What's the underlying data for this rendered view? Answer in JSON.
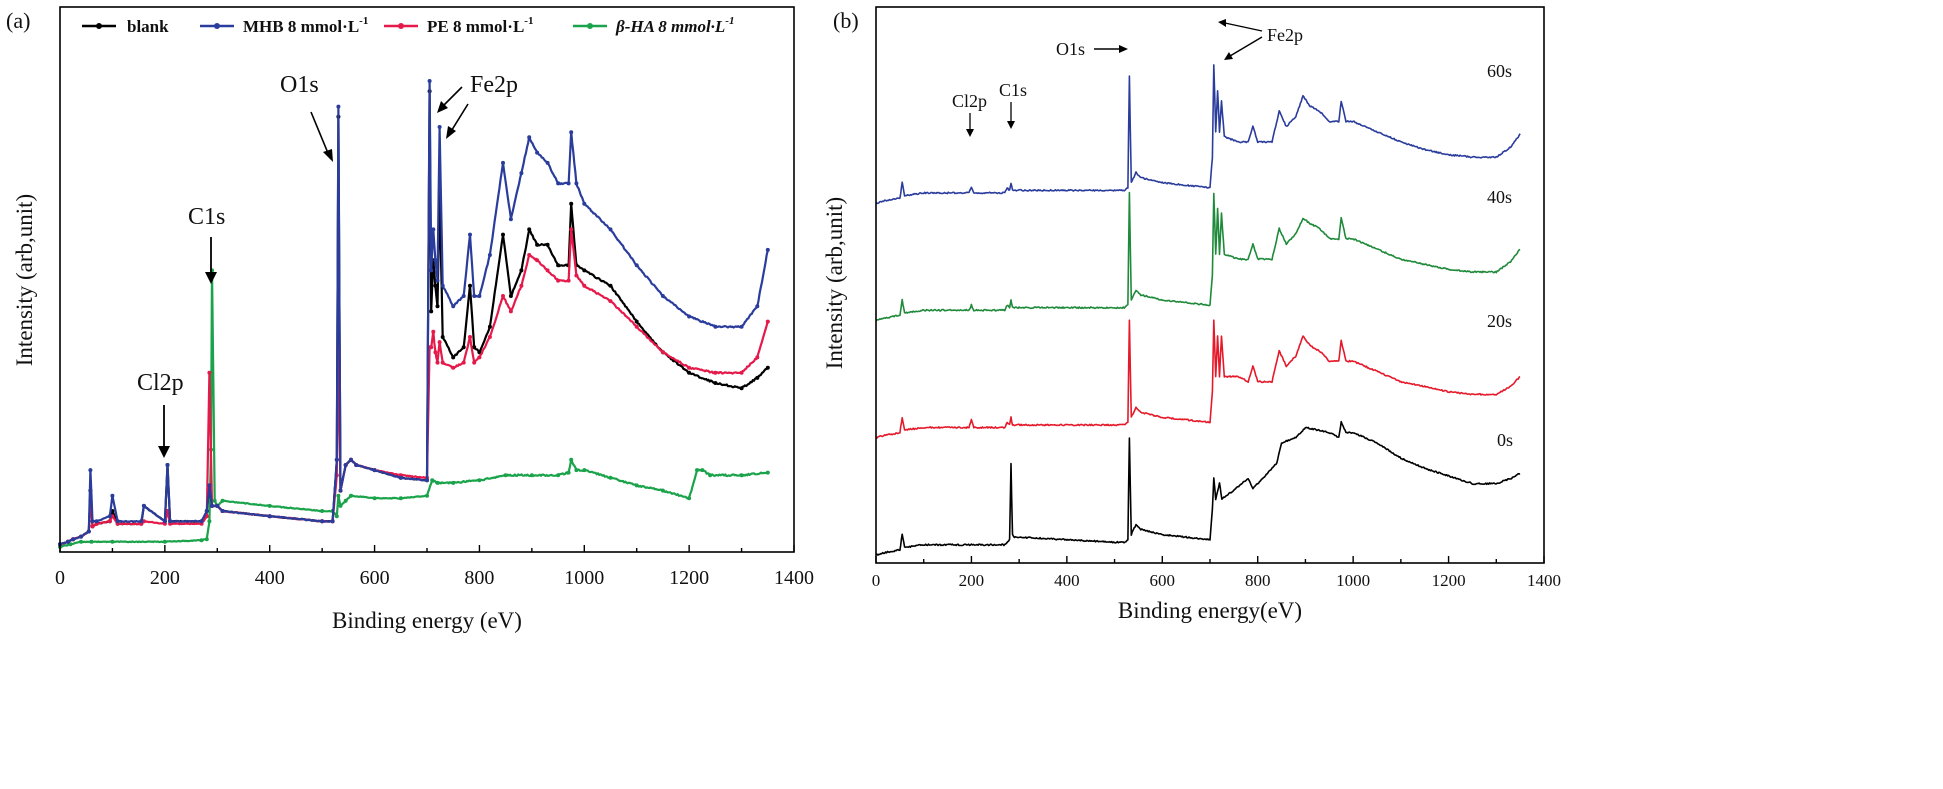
{
  "chart_data": [
    {
      "panel_label": "(a)",
      "type": "line",
      "xlabel": "Binding energy (eV)",
      "ylabel": "Intensity (arb,unit)",
      "xlim": [
        0,
        1400
      ],
      "ylim": [
        0,
        100
      ],
      "xticks": [
        "0",
        "200",
        "400",
        "600",
        "800",
        "1000",
        "1200",
        "1400"
      ],
      "legend": {
        "placement": "top",
        "entries": [
          {
            "label": "blank",
            "color": "#000000"
          },
          {
            "label": "MHB 8 mmol·L",
            "sup": "-1",
            "color": "#2b3d9c"
          },
          {
            "label": "PE 8 mmol·L",
            "sup": "-1",
            "color": "#e5194a"
          },
          {
            "label": "β-HA 8 mmol·L",
            "sup": "-1",
            "color": "#1aa34a"
          }
        ]
      },
      "annotations": [
        "O1s",
        "Fe2p",
        "C1s",
        "Cl2p"
      ],
      "series": [
        {
          "name": "blank",
          "color": "#000000",
          "x": [
            0,
            15,
            25,
            40,
            55,
            58,
            62,
            70,
            95,
            100,
            110,
            155,
            160,
            200,
            205,
            210,
            270,
            280,
            285,
            290,
            300,
            310,
            400,
            500,
            520,
            528,
            531,
            535,
            545,
            555,
            565,
            600,
            650,
            700,
            705,
            708,
            712,
            716,
            720,
            724,
            730,
            750,
            770,
            782,
            790,
            800,
            820,
            845,
            860,
            880,
            895,
            910,
            930,
            950,
            970,
            975,
            985,
            1000,
            1050,
            1100,
            1150,
            1200,
            1250,
            1300,
            1330,
            1350
          ],
          "y": [
            1.5,
            2,
            2.5,
            3,
            4,
            12,
            5,
            5.5,
            6,
            8,
            5.5,
            5.5,
            9,
            6,
            17,
            6,
            6,
            8,
            13,
            9,
            9,
            8,
            7,
            6,
            6,
            18,
            85,
            12,
            17,
            18,
            17,
            16,
            14.5,
            14,
            90,
            47,
            57,
            52,
            48,
            70,
            42,
            38,
            40,
            52,
            40,
            39,
            44,
            62,
            50,
            55,
            63,
            60,
            60,
            56,
            56,
            68,
            56,
            55,
            52,
            45,
            39,
            35,
            33,
            32,
            34,
            36
          ]
        },
        {
          "name": "MHB 8 mmol·L-1",
          "color": "#2b3d9c",
          "x": [
            0,
            15,
            25,
            40,
            55,
            58,
            62,
            70,
            95,
            100,
            110,
            155,
            160,
            200,
            205,
            210,
            270,
            280,
            285,
            290,
            300,
            310,
            400,
            500,
            520,
            528,
            531,
            535,
            545,
            555,
            565,
            600,
            650,
            700,
            705,
            708,
            712,
            716,
            720,
            724,
            730,
            750,
            770,
            782,
            790,
            800,
            820,
            845,
            860,
            880,
            895,
            910,
            930,
            950,
            970,
            975,
            985,
            1000,
            1050,
            1100,
            1150,
            1200,
            1250,
            1300,
            1330,
            1350
          ],
          "y": [
            1.5,
            2,
            2.5,
            3,
            4,
            16,
            6,
            6,
            7,
            11,
            6,
            6,
            9,
            6,
            17,
            6,
            6,
            8,
            13,
            9,
            9,
            8,
            7,
            6,
            6,
            18,
            87,
            12,
            17,
            18,
            17,
            16,
            14.5,
            14,
            92,
            55,
            63,
            57,
            53,
            83,
            52,
            48,
            50,
            62,
            50,
            50,
            58,
            76,
            65,
            74,
            81,
            78,
            76,
            72,
            72,
            82,
            72,
            68,
            63,
            56,
            50,
            46,
            44,
            44,
            48,
            59
          ]
        },
        {
          "name": "PE 8 mmol·L-1",
          "color": "#e5194a",
          "x": [
            0,
            15,
            25,
            40,
            55,
            58,
            62,
            70,
            95,
            100,
            110,
            155,
            160,
            200,
            205,
            210,
            270,
            280,
            285,
            290,
            300,
            310,
            400,
            500,
            520,
            528,
            531,
            535,
            545,
            555,
            565,
            600,
            650,
            700,
            705,
            708,
            712,
            716,
            720,
            724,
            730,
            750,
            770,
            782,
            790,
            800,
            820,
            845,
            860,
            880,
            895,
            910,
            930,
            950,
            970,
            975,
            985,
            1000,
            1050,
            1100,
            1150,
            1200,
            1250,
            1300,
            1330,
            1350
          ],
          "y": [
            1.5,
            2,
            2.5,
            3,
            4,
            10,
            5,
            5.5,
            6,
            7,
            5.5,
            5.5,
            6,
            5.5,
            8,
            5.5,
            5.5,
            7,
            35,
            9,
            9,
            8,
            7,
            6,
            6,
            15,
            40,
            12,
            17,
            18,
            17,
            16,
            15,
            14.5,
            40,
            40,
            43,
            39,
            37,
            41,
            37,
            36,
            37,
            42,
            37,
            38,
            42,
            50,
            47,
            52,
            58,
            57,
            55,
            53,
            53,
            63,
            54,
            52,
            49,
            44,
            39,
            36,
            35,
            35,
            38,
            45
          ]
        },
        {
          "name": "β-HA 8 mmol·L-1",
          "color": "#1aa34a",
          "x": [
            0,
            20,
            40,
            60,
            100,
            200,
            270,
            280,
            285,
            288,
            290,
            295,
            300,
            310,
            400,
            500,
            520,
            528,
            531,
            535,
            545,
            555,
            600,
            650,
            700,
            710,
            720,
            750,
            800,
            850,
            900,
            950,
            970,
            975,
            985,
            1000,
            1050,
            1100,
            1150,
            1200,
            1215,
            1225,
            1240,
            1300,
            1350
          ],
          "y": [
            1,
            1.5,
            2,
            2,
            2,
            2,
            2.3,
            2.5,
            6,
            20,
            55,
            10,
            9,
            10,
            9,
            8,
            8,
            7,
            11,
            9,
            10,
            11,
            10.5,
            10.5,
            11,
            14,
            13.5,
            13.5,
            14,
            15,
            15,
            15,
            15.5,
            18,
            16,
            16,
            14.5,
            13,
            12,
            10.5,
            16,
            16,
            15,
            15,
            15.5
          ]
        }
      ]
    },
    {
      "panel_label": "(b)",
      "type": "line",
      "xlabel": "Binding energy(eV)",
      "ylabel": "Intensity (arb,unit)",
      "xlim": [
        0,
        1400
      ],
      "ylim": [
        0,
        100
      ],
      "xticks": [
        "0",
        "200",
        "400",
        "600",
        "800",
        "1000",
        "1200",
        "1400"
      ],
      "annotations": [
        "O1s",
        "Fe2p",
        "Cl2p",
        "C1s"
      ],
      "series_labels": [
        "60s",
        "40s",
        "20s",
        "0s"
      ],
      "series": [
        {
          "name": "0s",
          "color": "#000000",
          "offset": 0,
          "label": "0s",
          "x": [
            0,
            20,
            50,
            55,
            60,
            100,
            200,
            270,
            280,
            283,
            286,
            290,
            300,
            400,
            500,
            520,
            528,
            531,
            535,
            545,
            555,
            600,
            650,
            700,
            705,
            708,
            712,
            720,
            725,
            740,
            780,
            790,
            800,
            840,
            850,
            880,
            900,
            950,
            970,
            975,
            985,
            1000,
            1050,
            1100,
            1150,
            1200,
            1250,
            1300,
            1330,
            1350
          ],
          "y": [
            0,
            0.5,
            1,
            4,
            1.5,
            2,
            2,
            2,
            3,
            18,
            4,
            3.5,
            3.5,
            3,
            2.5,
            2.5,
            3,
            23,
            4,
            6,
            5,
            4,
            3.5,
            3,
            9,
            15,
            11,
            14,
            11,
            12,
            15,
            13,
            14,
            18,
            22,
            23,
            25,
            24,
            23,
            26,
            24,
            24,
            22,
            19,
            17,
            15.5,
            14,
            14,
            15,
            16
          ]
        },
        {
          "name": "20s",
          "color": "#e5192a",
          "offset": 23,
          "label": "20s",
          "x": [
            0,
            20,
            50,
            55,
            60,
            100,
            195,
            200,
            205,
            270,
            275,
            280,
            283,
            286,
            290,
            300,
            400,
            500,
            520,
            528,
            531,
            535,
            545,
            555,
            600,
            650,
            700,
            705,
            708,
            712,
            716,
            720,
            724,
            730,
            760,
            780,
            790,
            800,
            830,
            845,
            860,
            880,
            895,
            910,
            930,
            950,
            970,
            975,
            985,
            1000,
            1050,
            1100,
            1150,
            1200,
            1250,
            1300,
            1330,
            1350
          ],
          "y": [
            0,
            0.5,
            1,
            4,
            1.5,
            2,
            2,
            3.5,
            2,
            2,
            3,
            2.5,
            4,
            2.5,
            2.5,
            2.5,
            2.5,
            2.5,
            2.5,
            3,
            23,
            4,
            6,
            5,
            4,
            3.5,
            3,
            9,
            23,
            12,
            20,
            12,
            20,
            12,
            12,
            11,
            14,
            11,
            11,
            17,
            14,
            16,
            20,
            18,
            17,
            15,
            15,
            19,
            15,
            15,
            13,
            11,
            10,
            9,
            8.5,
            8.5,
            10,
            12
          ]
        },
        {
          "name": "40s",
          "color": "#1f8a3a",
          "offset": 46,
          "label": "40s",
          "x": [
            0,
            20,
            50,
            55,
            60,
            100,
            195,
            200,
            205,
            270,
            275,
            280,
            283,
            286,
            290,
            300,
            400,
            500,
            520,
            528,
            531,
            535,
            545,
            555,
            600,
            650,
            700,
            705,
            708,
            712,
            716,
            720,
            724,
            730,
            760,
            780,
            790,
            800,
            830,
            845,
            860,
            880,
            895,
            910,
            930,
            950,
            970,
            975,
            985,
            1000,
            1050,
            1100,
            1150,
            1200,
            1250,
            1300,
            1330,
            1350
          ],
          "y": [
            0,
            0.5,
            1,
            4,
            1.5,
            2,
            2,
            3,
            2,
            2,
            3,
            2.5,
            4,
            2.5,
            2.5,
            2.5,
            2.5,
            2.5,
            2.5,
            3,
            25,
            4,
            6,
            5,
            4,
            3.5,
            3,
            9,
            25,
            13,
            22,
            13,
            21,
            13,
            12,
            12,
            15,
            12,
            12,
            18,
            15,
            17,
            20,
            19,
            18,
            16,
            16,
            20,
            16,
            16,
            14,
            12,
            11,
            10,
            9.5,
            9.5,
            11.5,
            14
          ]
        },
        {
          "name": "60s",
          "color": "#2b3d9c",
          "offset": 69,
          "label": "60s",
          "x": [
            0,
            20,
            50,
            55,
            60,
            100,
            195,
            200,
            205,
            270,
            275,
            280,
            283,
            286,
            290,
            300,
            400,
            500,
            520,
            528,
            531,
            535,
            545,
            555,
            600,
            650,
            700,
            705,
            708,
            712,
            716,
            720,
            724,
            730,
            760,
            780,
            790,
            800,
            830,
            845,
            860,
            880,
            895,
            910,
            930,
            950,
            970,
            975,
            985,
            1000,
            1050,
            1100,
            1150,
            1200,
            1250,
            1300,
            1330,
            1350
          ],
          "y": [
            0,
            0.5,
            1,
            4,
            1.5,
            2,
            2,
            3,
            2,
            2,
            3,
            2.5,
            4,
            2.5,
            2.5,
            2.5,
            2.5,
            2.5,
            2.5,
            3,
            25,
            4,
            6,
            5,
            4,
            3.5,
            3,
            9,
            27,
            14,
            22,
            14,
            20,
            13,
            12,
            12,
            15,
            12,
            12,
            18,
            15,
            17,
            21,
            19,
            18,
            16,
            16,
            20,
            16,
            16,
            14,
            12,
            10.5,
            9.5,
            9,
            9,
            11,
            13.5
          ]
        }
      ]
    }
  ]
}
